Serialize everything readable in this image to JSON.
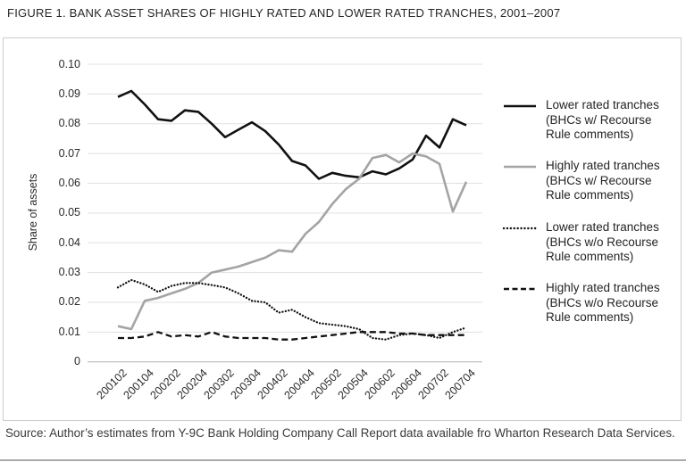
{
  "figure": {
    "title": "FIGURE 1. BANK ASSET SHARES OF HIGHLY RATED AND LOWER RATED TRANCHES, 2001–2007",
    "source": "Source: Author’s estimates from Y-9C Bank Holding Company Call Report data available fro Wharton Research Data Services."
  },
  "colors": {
    "black_line": "#111111",
    "gray_line": "#a4a4a4",
    "grid": "#e0e0e0",
    "axis_line": "#b3b3b3",
    "box_border": "#cbcbcb"
  },
  "chart_data": {
    "type": "line",
    "title": "FIGURE 1. BANK ASSET SHARES OF HIGHLY RATED AND LOWER RATED TRANCHES, 2001–2007",
    "xlabel": "",
    "ylabel": "Share of assets",
    "ylim": [
      0,
      0.1
    ],
    "ytick_step": 0.01,
    "grid": "horizontal",
    "legend_position": "right",
    "y_axis": {
      "label": "Share of assets",
      "ticks": [
        "0.10",
        "0.09",
        "0.08",
        "0.07",
        "0.06",
        "0.05",
        "0.04",
        "0.03",
        "0.02",
        "0.01",
        "0"
      ]
    },
    "x_axis": {
      "ticks": [
        "200102",
        "200104",
        "200202",
        "200204",
        "200302",
        "200304",
        "200402",
        "200404",
        "200502",
        "200504",
        "200602",
        "200604",
        "200702",
        "200704"
      ],
      "points_per_tick": 2,
      "note": "series are quarterly; ticks label every other quarter from 2001Q2 to 2007Q4"
    },
    "series": [
      {
        "id": "lower-rated-w-recourse",
        "name": "Lower rated tranches (BHCs w/ Recourse Rule comments)",
        "legend_label": "Lower rated tranches\n(BHCs w/ Recourse\nRule comments)",
        "style": "solid",
        "color": "#111111",
        "values": [
          0.089,
          0.091,
          0.0865,
          0.0815,
          0.081,
          0.0845,
          0.084,
          0.08,
          0.0755,
          0.078,
          0.0805,
          0.0775,
          0.073,
          0.0675,
          0.066,
          0.0615,
          0.0635,
          0.0625,
          0.062,
          0.064,
          0.063,
          0.065,
          0.068,
          0.076,
          0.072,
          0.0815,
          0.0795
        ]
      },
      {
        "id": "highly-rated-w-recourse",
        "name": "Highly rated tranches (BHCs w/ Recourse Rule comments)",
        "legend_label": "Highly rated tranches\n(BHCs w/ Recourse\nRule comments)",
        "style": "solid",
        "color": "#a4a4a4",
        "values": [
          0.012,
          0.011,
          0.0205,
          0.0215,
          0.023,
          0.0245,
          0.0265,
          0.03,
          0.031,
          0.032,
          0.0335,
          0.035,
          0.0375,
          0.037,
          0.043,
          0.047,
          0.053,
          0.058,
          0.0615,
          0.0685,
          0.0695,
          0.067,
          0.07,
          0.069,
          0.0665,
          0.0505,
          0.0605
        ]
      },
      {
        "id": "lower-rated-wo-recourse",
        "name": "Lower rated tranches (BHCs w/o Recourse Rule comments)",
        "legend_label": "Lower rated tranches\n(BHCs w/o Recourse\nRule comments)",
        "style": "dotted",
        "color": "#111111",
        "values": [
          0.025,
          0.0275,
          0.026,
          0.0235,
          0.0255,
          0.0265,
          0.0265,
          0.0258,
          0.025,
          0.023,
          0.0205,
          0.02,
          0.0165,
          0.0175,
          0.015,
          0.013,
          0.0125,
          0.012,
          0.011,
          0.008,
          0.0075,
          0.009,
          0.0095,
          0.009,
          0.008,
          0.01,
          0.0115
        ]
      },
      {
        "id": "highly-rated-wo-recourse",
        "name": "Highly rated tranches (BHCs w/o Recourse Rule comments)",
        "legend_label": "Highly rated tranches\n(BHCs w/o Recourse\nRule comments)",
        "style": "dashed",
        "color": "#111111",
        "values": [
          0.008,
          0.008,
          0.0085,
          0.01,
          0.0085,
          0.009,
          0.0085,
          0.01,
          0.0085,
          0.008,
          0.008,
          0.008,
          0.0075,
          0.0075,
          0.008,
          0.0085,
          0.009,
          0.0095,
          0.01,
          0.01,
          0.01,
          0.0095,
          0.0095,
          0.009,
          0.009,
          0.009,
          0.009
        ]
      }
    ]
  }
}
